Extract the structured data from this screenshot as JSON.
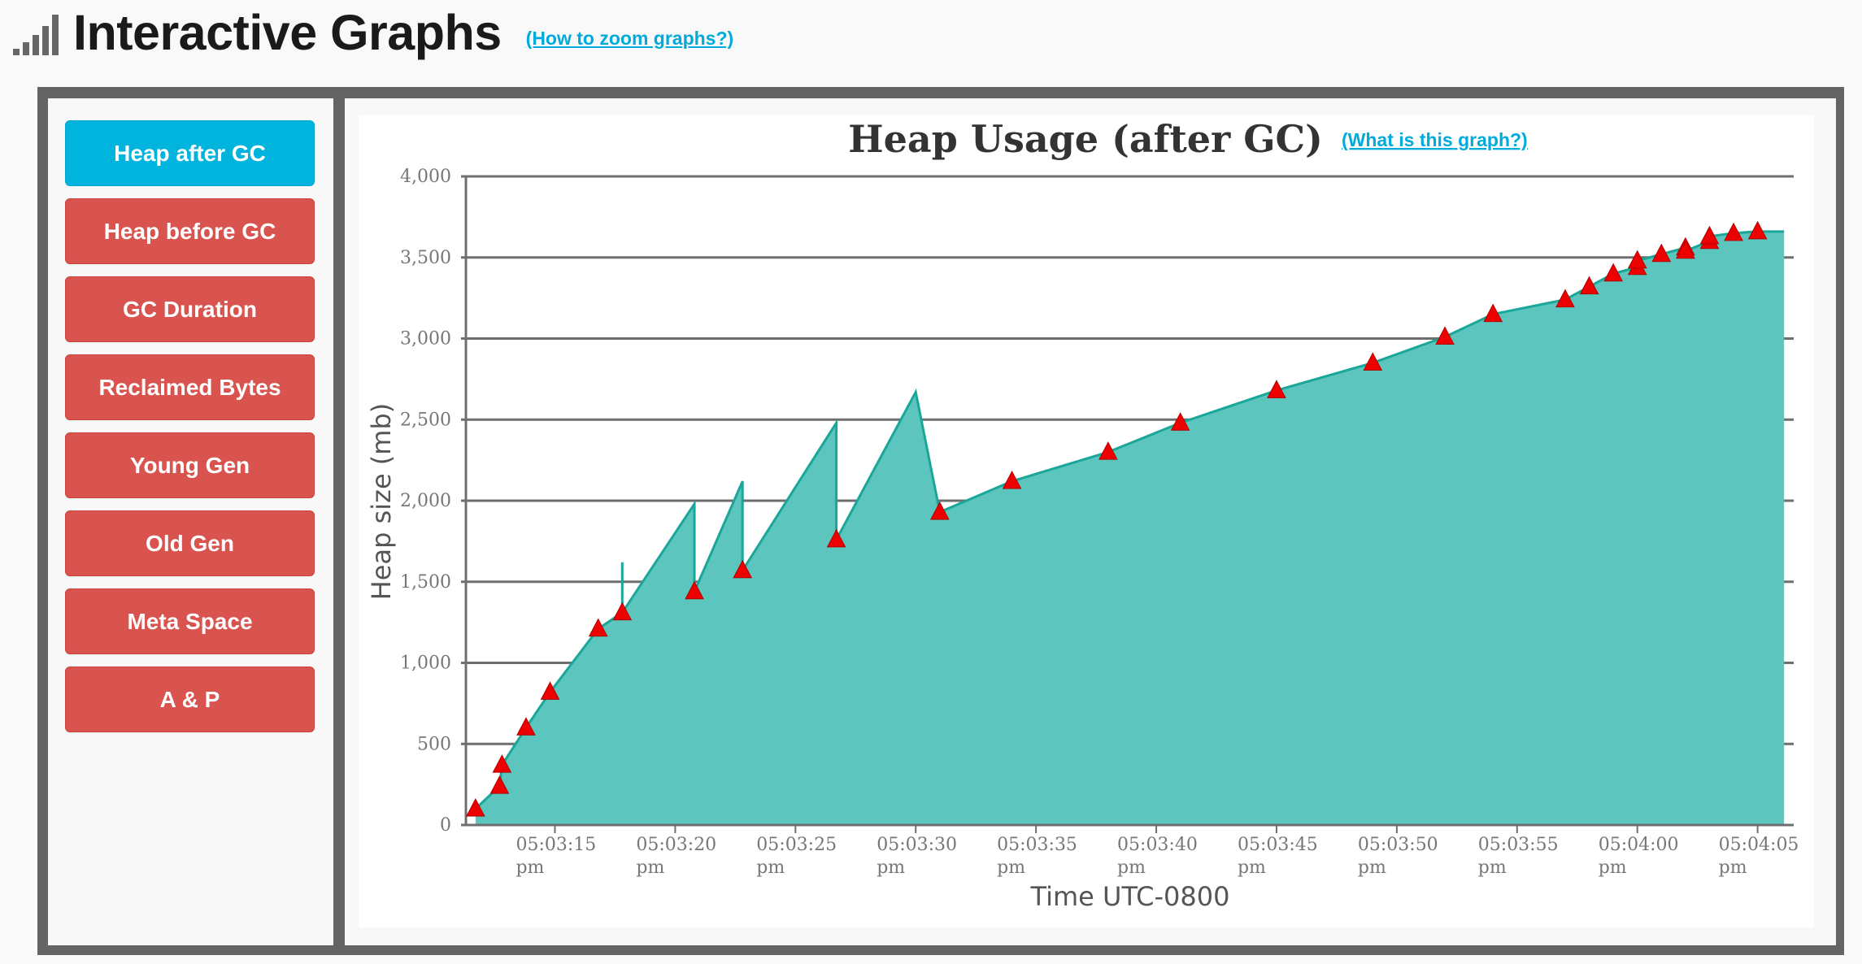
{
  "header": {
    "title": "Interactive Graphs",
    "help_link": "(How to zoom graphs?)",
    "icon": "signal-bars-icon"
  },
  "sidebar": {
    "items": [
      {
        "label": "Heap after GC",
        "active": true
      },
      {
        "label": "Heap before GC",
        "active": false
      },
      {
        "label": "GC Duration",
        "active": false
      },
      {
        "label": "Reclaimed Bytes",
        "active": false
      },
      {
        "label": "Young Gen",
        "active": false
      },
      {
        "label": "Old Gen",
        "active": false
      },
      {
        "label": "Meta Space",
        "active": false
      },
      {
        "label": "A & P",
        "active": false
      }
    ]
  },
  "colors": {
    "active_button": "#00b4de",
    "inactive_button": "#d9534f",
    "area_fill": "#5bc5be",
    "area_line": "#1aa79a",
    "marker": "#ee0000",
    "frame": "#646464"
  },
  "chart_data": {
    "type": "area",
    "title": "Heap Usage (after GC)",
    "help_link": "(What is this graph?)",
    "xlabel": "Time UTC-0800",
    "ylabel": "Heap size (mb)",
    "ylim": [
      0,
      4000
    ],
    "yticks": [
      0,
      500,
      1000,
      1500,
      2000,
      2500,
      3000,
      3500,
      4000
    ],
    "ytick_labels": [
      "0",
      "500",
      "1,000",
      "1,500",
      "2,000",
      "2,500",
      "3,000",
      "3,500",
      "4,000"
    ],
    "x_unit": "seconds after 05:03:00 pm",
    "xlim": [
      11.3,
      66.5
    ],
    "xticks": [
      {
        "value": 15,
        "label": "05:03:15",
        "sub": "pm"
      },
      {
        "value": 20,
        "label": "05:03:20",
        "sub": "pm"
      },
      {
        "value": 25,
        "label": "05:03:25",
        "sub": "pm"
      },
      {
        "value": 30,
        "label": "05:03:30",
        "sub": "pm"
      },
      {
        "value": 35,
        "label": "05:03:35",
        "sub": "pm"
      },
      {
        "value": 40,
        "label": "05:03:40",
        "sub": "pm"
      },
      {
        "value": 45,
        "label": "05:03:45",
        "sub": "pm"
      },
      {
        "value": 50,
        "label": "05:03:50",
        "sub": "pm"
      },
      {
        "value": 55,
        "label": "05:03:55",
        "sub": "pm"
      },
      {
        "value": 60,
        "label": "05:04:00",
        "sub": "pm"
      },
      {
        "value": 65,
        "label": "05:04:05",
        "sub": "pm"
      }
    ],
    "series": [
      {
        "type": "area",
        "x": [
          11.7,
          12.7,
          12.8,
          13.8,
          14.8,
          16.8,
          17.8,
          17.8,
          17.8,
          20.8,
          20.8,
          22.8,
          22.8,
          26.7,
          26.7,
          30.0,
          31.0,
          34.0,
          38.0,
          41.0,
          45.0,
          49.0,
          52.0,
          54.0,
          57.0,
          58.0,
          59.0,
          60.0,
          60.0,
          61.0,
          62.0,
          62.0,
          63.0,
          63.0,
          64.0,
          65.0,
          66.1
        ],
        "y": [
          100,
          240,
          370,
          600,
          820,
          1210,
          1310,
          1620,
          1310,
          1980,
          1440,
          2120,
          1570,
          2480,
          1760,
          2670,
          1930,
          2120,
          2300,
          2480,
          2680,
          2850,
          3010,
          3150,
          3240,
          3320,
          3400,
          3440,
          3480,
          3520,
          3560,
          3540,
          3600,
          3630,
          3650,
          3660,
          3660
        ]
      },
      {
        "type": "markers",
        "marker": "triangle",
        "x": [
          11.7,
          12.7,
          12.8,
          13.8,
          14.8,
          16.8,
          17.8,
          20.8,
          22.8,
          26.7,
          31.0,
          34.0,
          38.0,
          41.0,
          45.0,
          49.0,
          52.0,
          54.0,
          57.0,
          58.0,
          59.0,
          60.0,
          60.0,
          61.0,
          62.0,
          62.0,
          63.0,
          63.0,
          64.0,
          65.0
        ],
        "y": [
          100,
          240,
          370,
          600,
          820,
          1210,
          1310,
          1440,
          1570,
          1760,
          1930,
          2120,
          2300,
          2480,
          2680,
          2850,
          3010,
          3150,
          3240,
          3320,
          3400,
          3440,
          3480,
          3520,
          3560,
          3540,
          3600,
          3630,
          3650,
          3660
        ]
      }
    ],
    "grid": true,
    "legend": "none"
  }
}
